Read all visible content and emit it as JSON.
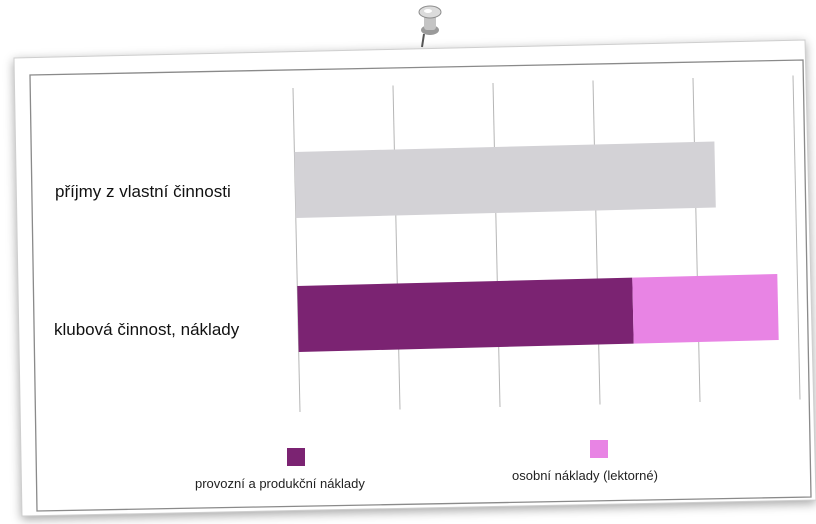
{
  "chart_data": {
    "type": "bar",
    "orientation": "horizontal",
    "stacked": true,
    "categories": [
      "příjmy z vlastní činnosti",
      "klubová činnost, náklady"
    ],
    "series": [
      {
        "name": "",
        "values": [
          84,
          0
        ],
        "color": "#d3d2d6"
      },
      {
        "name": "provozní a produkční náklady",
        "values": [
          0,
          67
        ],
        "color": "#7b2372"
      },
      {
        "name": "osobní náklady (lektorné)",
        "values": [
          0,
          29
        ],
        "color": "#e884e4"
      }
    ],
    "xlim": [
      0,
      100
    ],
    "grid": true,
    "legend": {
      "position": "bottom",
      "entries": [
        "provozní a produkční náklady",
        "osobní náklady (lektorné)"
      ]
    }
  },
  "decoration": {
    "pin_icon": "pushpin-icon",
    "paper_color": "#ffffff"
  }
}
